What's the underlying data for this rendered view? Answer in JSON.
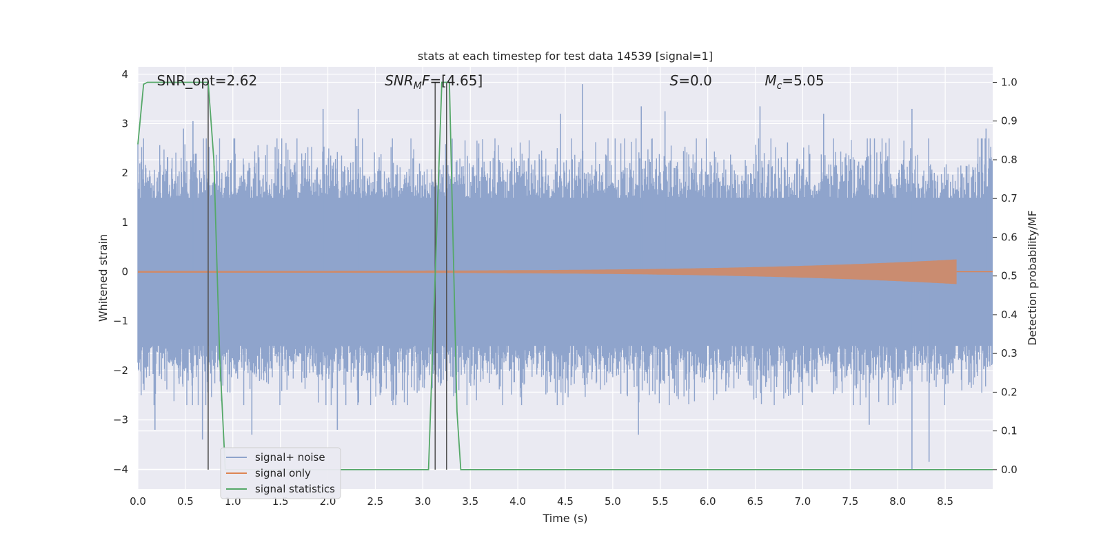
{
  "chart_data": {
    "type": "line",
    "title": "stats at each timestep for test data 14539 [signal=1]",
    "xlabel": "Time (s)",
    "ylabel": "Whitened strain",
    "ylabel_right": "Detection probability/MF",
    "xlim": [
      0,
      9
    ],
    "ylim": [
      -4.4,
      4.15
    ],
    "ylim_right": [
      -0.05,
      1.04
    ],
    "x_ticks": [
      "0.0",
      "0.5",
      "1.0",
      "1.5",
      "2.0",
      "2.5",
      "3.0",
      "3.5",
      "4.0",
      "4.5",
      "5.0",
      "5.5",
      "6.0",
      "6.5",
      "7.0",
      "7.5",
      "8.0",
      "8.5"
    ],
    "y_ticks": [
      "−4",
      "−3",
      "−2",
      "−1",
      "0",
      "1",
      "2",
      "3",
      "4"
    ],
    "y_ticks_right": [
      "0.0",
      "0.1",
      "0.2",
      "0.3",
      "0.4",
      "0.5",
      "0.6",
      "0.7",
      "0.8",
      "0.9",
      "1.0"
    ],
    "grid": true,
    "legend_position": "lower-left",
    "annotations": [
      {
        "prefix": "SNR_opt=",
        "value": "2.62",
        "x": 0.2
      },
      {
        "prefix": "SNR",
        "sub": "M",
        "suffix": "F=",
        "value": "[4.65]",
        "x": 2.6
      },
      {
        "prefix": "S",
        "suffix": "=",
        "value": "0.0",
        "x": 5.6
      },
      {
        "prefix": "M",
        "sub": "c",
        "suffix": "=",
        "value": "5.05",
        "x": 6.6
      }
    ],
    "vlines": [
      {
        "x": 0.74,
        "y_range": [
          0.0,
          1.0
        ]
      },
      {
        "x": 3.13,
        "y_range": [
          0.0,
          1.0
        ]
      },
      {
        "x": 3.25,
        "y_range": [
          0.0,
          1.0
        ]
      }
    ],
    "series": [
      {
        "name": "signal+ noise",
        "color": "#8fa4cc",
        "axis": "left",
        "noise_band": {
          "dense_abs": 1.5,
          "typical_max": 2.4,
          "spikes": [
            {
              "x": 0.48,
              "y": 2.9
            },
            {
              "x": 0.58,
              "y": 3.05
            },
            {
              "x": 1.95,
              "y": 3.3
            },
            {
              "x": 2.32,
              "y": 3.3
            },
            {
              "x": 4.68,
              "y": 3.8
            },
            {
              "x": 4.45,
              "y": 3.2
            },
            {
              "x": 5.3,
              "y": 3.35
            },
            {
              "x": 5.55,
              "y": 3.25
            },
            {
              "x": 6.55,
              "y": 3.35
            },
            {
              "x": 7.22,
              "y": 3.2
            },
            {
              "x": 8.15,
              "y": 3.3
            },
            {
              "x": 8.93,
              "y": 2.9
            },
            {
              "x": 0.68,
              "y": -3.4
            },
            {
              "x": 1.2,
              "y": -3.3
            },
            {
              "x": 2.1,
              "y": -3.2
            },
            {
              "x": 5.27,
              "y": -3.3
            },
            {
              "x": 8.15,
              "y": -4.0
            },
            {
              "x": 8.33,
              "y": -3.85
            },
            {
              "x": 7.7,
              "y": -3.1
            },
            {
              "x": 0.18,
              "y": -3.2
            }
          ]
        }
      },
      {
        "name": "signal only",
        "color": "#dd8452",
        "axis": "left",
        "chirp": {
          "start_x": 0.0,
          "end_x": 8.62,
          "start_amp": 0.02,
          "end_amp": 0.25
        }
      },
      {
        "name": "signal statistics",
        "color": "#55a868",
        "axis": "right",
        "x": [
          0.0,
          0.06,
          0.1,
          0.2,
          0.72,
          0.74,
          0.8,
          0.86,
          0.92,
          1.0,
          2.0,
          3.0,
          3.06,
          3.2,
          3.28,
          3.36,
          3.4,
          4.0,
          9.0
        ],
        "y": [
          0.84,
          0.995,
          1.0,
          1.0,
          1.0,
          1.0,
          0.8,
          0.3,
          0.0,
          0.0,
          0.0,
          0.0,
          0.0,
          1.0,
          1.0,
          0.15,
          0.0,
          0.0,
          0.0
        ]
      }
    ]
  }
}
